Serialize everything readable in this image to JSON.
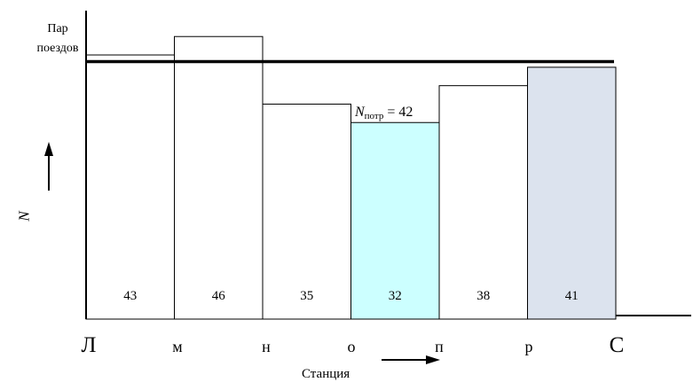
{
  "chart_data": {
    "type": "bar",
    "ylabel": "Пар поездов",
    "ylabel_lines": [
      "Пар",
      "поездов"
    ],
    "axis_symbol": "N",
    "xlabel": "Станция",
    "stations": [
      "Л",
      "м",
      "н",
      "о",
      "п",
      "р",
      "С"
    ],
    "categories": [
      "Л–м",
      "м–н",
      "н–о",
      "о–п",
      "п–р",
      "р–С"
    ],
    "values": [
      43,
      46,
      35,
      32,
      38,
      41
    ],
    "value_labels": [
      "43",
      "46",
      "35",
      "32",
      "38",
      "41"
    ],
    "bar_fills": [
      "#ffffff",
      "#ffffff",
      "#ffffff",
      "#ccffff",
      "#ffffff",
      "#dce3ee"
    ],
    "reference_line": {
      "label_main": "N",
      "label_sub": "потр",
      "label_rest": " = 42",
      "value": 42
    },
    "grid": false,
    "legend": "none"
  }
}
